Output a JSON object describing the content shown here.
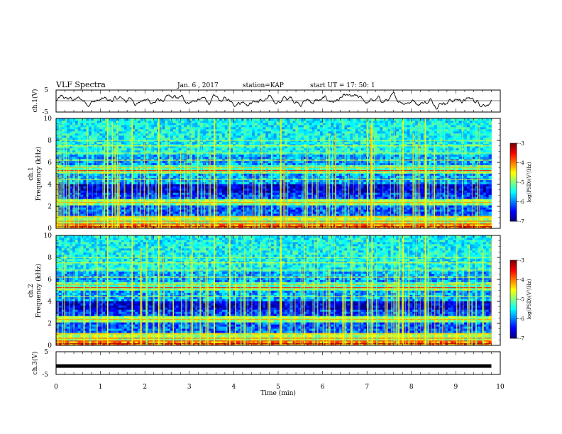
{
  "header": {
    "title": "VLF Spectra",
    "date": "Jan. 6 , 2017",
    "station": "station=KAP",
    "start": "start UT =  17: 50: 1"
  },
  "chart_data": [
    {
      "type": "line",
      "name": "ch1-waveform",
      "ylabel": "ch.1(V)",
      "ylim": [
        -5,
        5
      ],
      "yticks": [
        "5",
        "-5"
      ],
      "x_range_min": [
        0,
        9.8
      ],
      "approx_mean": 0.3,
      "approx_amplitude": 2.5
    },
    {
      "type": "heatmap",
      "name": "ch1-spectrogram",
      "ylabel_line1": "ch.1",
      "ylabel_line2": "Frequency (kHz)",
      "ylim": [
        0,
        10
      ],
      "yticks": [
        "0",
        "2",
        "4",
        "6",
        "8",
        "10"
      ],
      "colorbar": {
        "label": "log(PSD)(V²/Hz)",
        "range": [
          -7,
          -3
        ],
        "ticks": [
          "-3",
          "-4",
          "-5",
          "-6",
          "-7"
        ]
      }
    },
    {
      "type": "heatmap",
      "name": "ch2-spectrogram",
      "ylabel_line1": "ch.2",
      "ylabel_line2": "Frequency (kHz)",
      "ylim": [
        0,
        10
      ],
      "yticks": [
        "0",
        "2",
        "4",
        "6",
        "8",
        "10"
      ],
      "colorbar": {
        "label": "log(PSD)(V²/Hz)",
        "range": [
          -7,
          -3
        ],
        "ticks": [
          "-3",
          "-4",
          "-5",
          "-6",
          "-7"
        ]
      }
    },
    {
      "type": "line",
      "name": "ch3-waveform",
      "ylabel": "ch.3(V)",
      "ylim": [
        -5,
        5
      ],
      "yticks": [
        "5",
        "-5"
      ],
      "constant_value": -1.3
    }
  ],
  "xaxis": {
    "label": "Time (min)",
    "range": [
      0,
      10
    ],
    "ticks": [
      "0",
      "1",
      "2",
      "3",
      "4",
      "5",
      "6",
      "7",
      "8",
      "9",
      "10"
    ]
  }
}
